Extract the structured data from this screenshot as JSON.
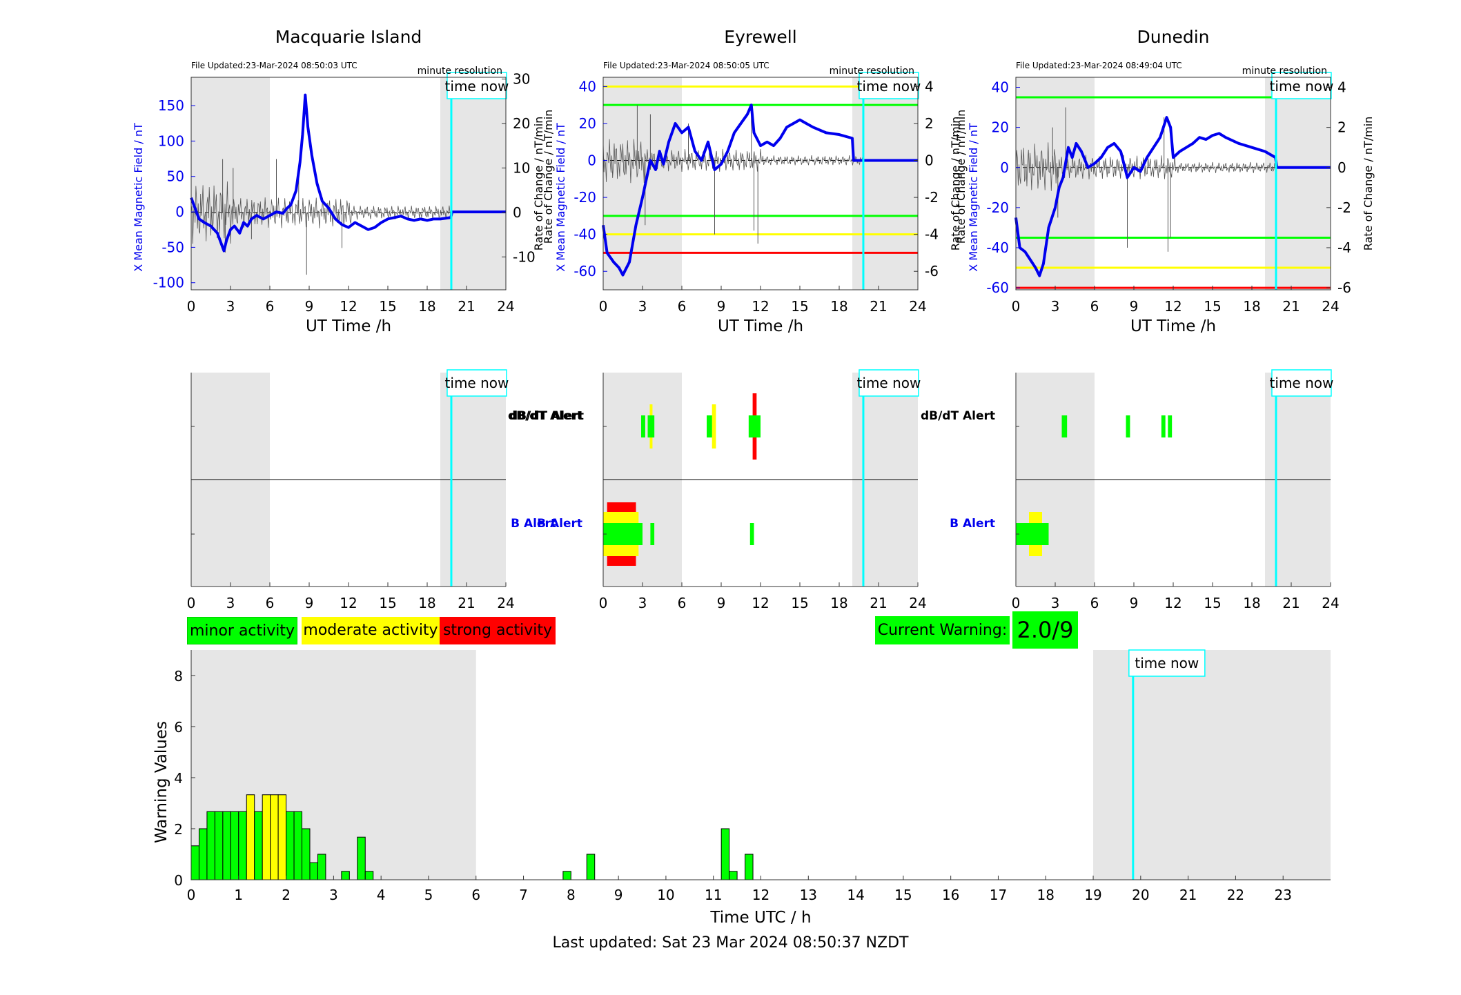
{
  "time_now_label": "time now",
  "x_axis_label_top": "UT Time /h",
  "y_axis_left_label": "X Mean Magnetic Field / nT",
  "y_axis_right_label": "Rate of Change / nT/min",
  "stations": [
    {
      "name": "Macquarie Island",
      "file_updated": "File Updated:23-Mar-2024 08:50:03 UTC",
      "resolution": "minute resolution",
      "ylim_left": [
        -110,
        190
      ],
      "yticks_left": [
        -100,
        -50,
        0,
        50,
        100,
        150
      ],
      "ylim_right": [
        -17.4,
        30.4
      ],
      "yticks_right": [
        -10,
        0,
        10,
        20,
        30
      ],
      "thresholds": [],
      "field_series": [
        [
          0,
          20
        ],
        [
          0.3,
          5
        ],
        [
          0.6,
          -10
        ],
        [
          1,
          -15
        ],
        [
          1.5,
          -20
        ],
        [
          2,
          -30
        ],
        [
          2.3,
          -45
        ],
        [
          2.5,
          -55
        ],
        [
          2.7,
          -40
        ],
        [
          3,
          -25
        ],
        [
          3.3,
          -20
        ],
        [
          3.7,
          -30
        ],
        [
          4,
          -15
        ],
        [
          4.3,
          -20
        ],
        [
          4.6,
          -10
        ],
        [
          5,
          -5
        ],
        [
          5.5,
          -10
        ],
        [
          6,
          -5
        ],
        [
          6.5,
          0
        ],
        [
          7,
          -2
        ],
        [
          7.3,
          5
        ],
        [
          7.6,
          10
        ],
        [
          8,
          30
        ],
        [
          8.3,
          70
        ],
        [
          8.5,
          110
        ],
        [
          8.7,
          165
        ],
        [
          8.9,
          120
        ],
        [
          9.2,
          80
        ],
        [
          9.6,
          40
        ],
        [
          10,
          15
        ],
        [
          10.5,
          5
        ],
        [
          11,
          -10
        ],
        [
          11.5,
          -18
        ],
        [
          12,
          -22
        ],
        [
          12.5,
          -15
        ],
        [
          13,
          -20
        ],
        [
          13.5,
          -25
        ],
        [
          14,
          -22
        ],
        [
          14.5,
          -15
        ],
        [
          15,
          -10
        ],
        [
          15.5,
          -8
        ],
        [
          16,
          -6
        ],
        [
          16.5,
          -10
        ],
        [
          17,
          -12
        ],
        [
          17.5,
          -10
        ],
        [
          18,
          -12
        ],
        [
          18.5,
          -10
        ],
        [
          19,
          -10
        ],
        [
          19.8,
          -8
        ],
        [
          19.9,
          0
        ],
        [
          24,
          0
        ]
      ],
      "rate_spikes": [
        [
          2.4,
          12
        ],
        [
          2.6,
          -9
        ],
        [
          3.2,
          10
        ],
        [
          4.6,
          -6
        ],
        [
          6.5,
          12
        ],
        [
          8.8,
          -14
        ],
        [
          8.2,
          8
        ],
        [
          11.5,
          -8
        ]
      ],
      "dbdt_alert": [],
      "b_alert": []
    },
    {
      "name": "Eyrewell",
      "file_updated": "File Updated:23-Mar-2024 08:50:05 UTC",
      "resolution": "minute resolution",
      "ylim_left": [
        -70,
        45
      ],
      "yticks_left": [
        -60,
        -40,
        -20,
        0,
        20,
        40
      ],
      "ylim_right": [
        -7,
        4.5
      ],
      "yticks_right": [
        -6,
        -4,
        -2,
        0,
        2,
        4
      ],
      "thresholds": [
        {
          "value": 40,
          "color": "#ffff00"
        },
        {
          "value": 30,
          "color": "#00ff00"
        },
        {
          "value": -30,
          "color": "#00ff00"
        },
        {
          "value": -40,
          "color": "#ffff00"
        },
        {
          "value": -50,
          "color": "#ff0000"
        }
      ],
      "field_series": [
        [
          0,
          -35
        ],
        [
          0.3,
          -50
        ],
        [
          0.8,
          -55
        ],
        [
          1.2,
          -58
        ],
        [
          1.5,
          -62
        ],
        [
          2,
          -55
        ],
        [
          2.5,
          -35
        ],
        [
          3,
          -20
        ],
        [
          3.3,
          -10
        ],
        [
          3.6,
          0
        ],
        [
          4,
          -5
        ],
        [
          4.3,
          5
        ],
        [
          4.6,
          -2
        ],
        [
          5,
          10
        ],
        [
          5.5,
          20
        ],
        [
          6,
          15
        ],
        [
          6.5,
          18
        ],
        [
          7,
          5
        ],
        [
          7.5,
          0
        ],
        [
          8,
          10
        ],
        [
          8.5,
          -5
        ],
        [
          9,
          -2
        ],
        [
          9.5,
          5
        ],
        [
          10,
          15
        ],
        [
          10.5,
          20
        ],
        [
          11,
          25
        ],
        [
          11.3,
          30
        ],
        [
          11.5,
          15
        ],
        [
          12,
          8
        ],
        [
          12.5,
          10
        ],
        [
          13,
          8
        ],
        [
          13.5,
          12
        ],
        [
          14,
          18
        ],
        [
          14.5,
          20
        ],
        [
          15,
          22
        ],
        [
          15.5,
          20
        ],
        [
          16,
          18
        ],
        [
          17,
          15
        ],
        [
          18,
          14
        ],
        [
          19,
          12
        ],
        [
          19.1,
          0
        ],
        [
          24,
          0
        ]
      ],
      "rate_spikes": [
        [
          2.6,
          3
        ],
        [
          3.2,
          -3.5
        ],
        [
          3.6,
          2.5
        ],
        [
          6.5,
          2
        ],
        [
          8.5,
          -4
        ],
        [
          11.3,
          2.8
        ],
        [
          11.8,
          -4.5
        ],
        [
          11.5,
          -3.8
        ]
      ],
      "dbdt_alert": [
        [
          2.9,
          3.2,
          "#00ff00"
        ],
        [
          3.4,
          3.9,
          "#00ff00"
        ],
        [
          3.55,
          3.75,
          "#ffff00"
        ],
        [
          7.9,
          8.3,
          "#00ff00"
        ],
        [
          8.3,
          8.6,
          "#ffff00"
        ],
        [
          11.1,
          12.0,
          "#00ff00"
        ],
        [
          11.4,
          11.7,
          "#ff0000"
        ]
      ],
      "b_alert": [
        [
          0.3,
          2.5,
          "#ff0000"
        ],
        [
          0.0,
          2.7,
          "#ffff00"
        ],
        [
          0.0,
          3.0,
          "#00ff00"
        ],
        [
          3.6,
          3.9,
          "#00ff00"
        ],
        [
          11.2,
          11.5,
          "#00ff00"
        ]
      ]
    },
    {
      "name": "Dunedin",
      "file_updated": "File Updated:23-Mar-2024 08:49:04 UTC",
      "resolution": "minute resolution",
      "ylim_left": [
        -61,
        45
      ],
      "yticks_left": [
        -60,
        -40,
        -20,
        0,
        20,
        40
      ],
      "ylim_right": [
        -6.1,
        4.5
      ],
      "yticks_right": [
        -6,
        -4,
        -2,
        0,
        2,
        4
      ],
      "thresholds": [
        {
          "value": 35,
          "color": "#00ff00"
        },
        {
          "value": -35,
          "color": "#00ff00"
        },
        {
          "value": -50,
          "color": "#ffff00"
        },
        {
          "value": -60,
          "color": "#ff0000"
        }
      ],
      "field_series": [
        [
          0,
          -25
        ],
        [
          0.3,
          -40
        ],
        [
          0.7,
          -42
        ],
        [
          1,
          -45
        ],
        [
          1.5,
          -50
        ],
        [
          1.8,
          -54
        ],
        [
          2.1,
          -48
        ],
        [
          2.5,
          -30
        ],
        [
          3,
          -20
        ],
        [
          3.3,
          -10
        ],
        [
          3.6,
          -5
        ],
        [
          4,
          10
        ],
        [
          4.3,
          5
        ],
        [
          4.6,
          12
        ],
        [
          5,
          8
        ],
        [
          5.5,
          0
        ],
        [
          6,
          2
        ],
        [
          6.5,
          5
        ],
        [
          7,
          10
        ],
        [
          7.5,
          12
        ],
        [
          8,
          8
        ],
        [
          8.5,
          -5
        ],
        [
          9,
          0
        ],
        [
          9.5,
          -2
        ],
        [
          10,
          5
        ],
        [
          10.5,
          10
        ],
        [
          11,
          15
        ],
        [
          11.5,
          25
        ],
        [
          11.8,
          20
        ],
        [
          12,
          5
        ],
        [
          12.5,
          8
        ],
        [
          13,
          10
        ],
        [
          13.5,
          12
        ],
        [
          14,
          15
        ],
        [
          14.5,
          14
        ],
        [
          15,
          16
        ],
        [
          15.5,
          17
        ],
        [
          16,
          15
        ],
        [
          17,
          12
        ],
        [
          18,
          10
        ],
        [
          19,
          8
        ],
        [
          19.8,
          5
        ],
        [
          19.9,
          0
        ],
        [
          24,
          0
        ]
      ],
      "rate_spikes": [
        [
          2.8,
          2
        ],
        [
          3.2,
          -2.5
        ],
        [
          3.8,
          3
        ],
        [
          8.5,
          -4
        ],
        [
          11.3,
          2.5
        ],
        [
          11.6,
          -4.2
        ],
        [
          11.8,
          -3.5
        ]
      ],
      "dbdt_alert": [
        [
          3.5,
          3.9,
          "#00ff00"
        ],
        [
          8.4,
          8.7,
          "#00ff00"
        ],
        [
          11.1,
          11.4,
          "#00ff00"
        ],
        [
          11.6,
          11.9,
          "#00ff00"
        ]
      ],
      "b_alert": [
        [
          1.0,
          2.0,
          "#ffff00"
        ],
        [
          0.0,
          2.5,
          "#00ff00"
        ]
      ]
    }
  ],
  "middle_labels": {
    "dbdt": "dB/dT Alert",
    "b": "B Alert"
  },
  "x_ticks_top": [
    0,
    3,
    6,
    9,
    12,
    15,
    18,
    21,
    24
  ],
  "night_shade": [
    [
      0,
      6
    ],
    [
      19,
      24
    ]
  ],
  "time_now_hour": 19.84,
  "legend": [
    {
      "label": "minor activity",
      "color": "#00ff00"
    },
    {
      "label": "moderate activity",
      "color": "#ffff00"
    },
    {
      "label": "strong activity",
      "color": "#ff0000"
    }
  ],
  "current_warning_label": "Current Warning:",
  "current_warning_value": "2.0/9",
  "chart_data": {
    "type": "bar",
    "xlabel": "Time UTC / h",
    "ylabel": "Warning Values",
    "xlim": [
      0,
      24
    ],
    "ylim": [
      0,
      9
    ],
    "x_ticks": [
      0,
      1,
      2,
      3,
      4,
      5,
      6,
      7,
      8,
      9,
      10,
      11,
      12,
      13,
      14,
      15,
      16,
      17,
      18,
      19,
      20,
      21,
      22,
      23
    ],
    "y_ticks": [
      0,
      2,
      4,
      6,
      8
    ],
    "bar_width_h": 0.1667,
    "bars": [
      {
        "x": 0.0,
        "value": 1.33,
        "color": "#00ff00"
      },
      {
        "x": 0.1667,
        "value": 2.0,
        "color": "#00ff00"
      },
      {
        "x": 0.3333,
        "value": 2.67,
        "color": "#00ff00"
      },
      {
        "x": 0.5,
        "value": 2.67,
        "color": "#00ff00"
      },
      {
        "x": 0.6667,
        "value": 2.67,
        "color": "#00ff00"
      },
      {
        "x": 0.8333,
        "value": 2.67,
        "color": "#00ff00"
      },
      {
        "x": 1.0,
        "value": 2.67,
        "color": "#00ff00"
      },
      {
        "x": 1.1667,
        "value": 3.33,
        "color": "#ffff00"
      },
      {
        "x": 1.3333,
        "value": 2.67,
        "color": "#00ff00"
      },
      {
        "x": 1.5,
        "value": 3.33,
        "color": "#ffff00"
      },
      {
        "x": 1.6667,
        "value": 3.33,
        "color": "#ffff00"
      },
      {
        "x": 1.8333,
        "value": 3.33,
        "color": "#ffff00"
      },
      {
        "x": 2.0,
        "value": 2.67,
        "color": "#00ff00"
      },
      {
        "x": 2.1667,
        "value": 2.67,
        "color": "#00ff00"
      },
      {
        "x": 2.3333,
        "value": 2.0,
        "color": "#00ff00"
      },
      {
        "x": 2.5,
        "value": 0.67,
        "color": "#00ff00"
      },
      {
        "x": 2.6667,
        "value": 1.0,
        "color": "#00ff00"
      },
      {
        "x": 3.1667,
        "value": 0.33,
        "color": "#00ff00"
      },
      {
        "x": 3.5,
        "value": 1.67,
        "color": "#00ff00"
      },
      {
        "x": 3.6667,
        "value": 0.33,
        "color": "#00ff00"
      },
      {
        "x": 7.8333,
        "value": 0.33,
        "color": "#00ff00"
      },
      {
        "x": 8.3333,
        "value": 1.0,
        "color": "#00ff00"
      },
      {
        "x": 11.1667,
        "value": 2.0,
        "color": "#00ff00"
      },
      {
        "x": 11.3333,
        "value": 0.33,
        "color": "#00ff00"
      },
      {
        "x": 11.6667,
        "value": 1.0,
        "color": "#00ff00"
      }
    ]
  },
  "last_updated": "Last updated: Sat 23 Mar 2024 08:50:37 NZDT"
}
